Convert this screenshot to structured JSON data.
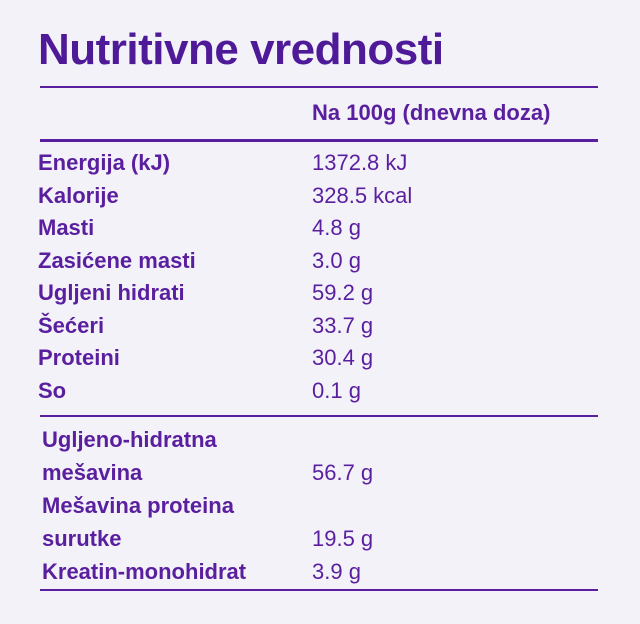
{
  "title": "Nutritivne vrednosti",
  "header": "Na 100g (dnevna doza)",
  "rows": [
    {
      "label": [
        "Energija (kJ)"
      ],
      "value": "1372.8 kJ"
    },
    {
      "label": [
        "Kalorije"
      ],
      "value": "328.5 kcal"
    },
    {
      "label": [
        "Masti"
      ],
      "value": "4.8 g"
    },
    {
      "label": [
        "Zasićene masti"
      ],
      "value": "3.0 g"
    },
    {
      "label": [
        "Ugljeni hidrati"
      ],
      "value": "59.2 g"
    },
    {
      "label": [
        "Šećeri"
      ],
      "value": "33.7 g"
    },
    {
      "label": [
        "Proteini"
      ],
      "value": "30.4 g"
    },
    {
      "label": [
        "So"
      ],
      "value": "0.1 g"
    }
  ],
  "extra_rows": [
    {
      "label": [
        "Ugljeno-hidratna",
        "mešavina"
      ],
      "value": "56.7 g"
    },
    {
      "label": [
        "Mešavina proteina",
        "surutke"
      ],
      "value": "19.5 g"
    },
    {
      "label": [
        "Kreatin-monohidrat"
      ],
      "value": "3.9 g"
    }
  ]
}
